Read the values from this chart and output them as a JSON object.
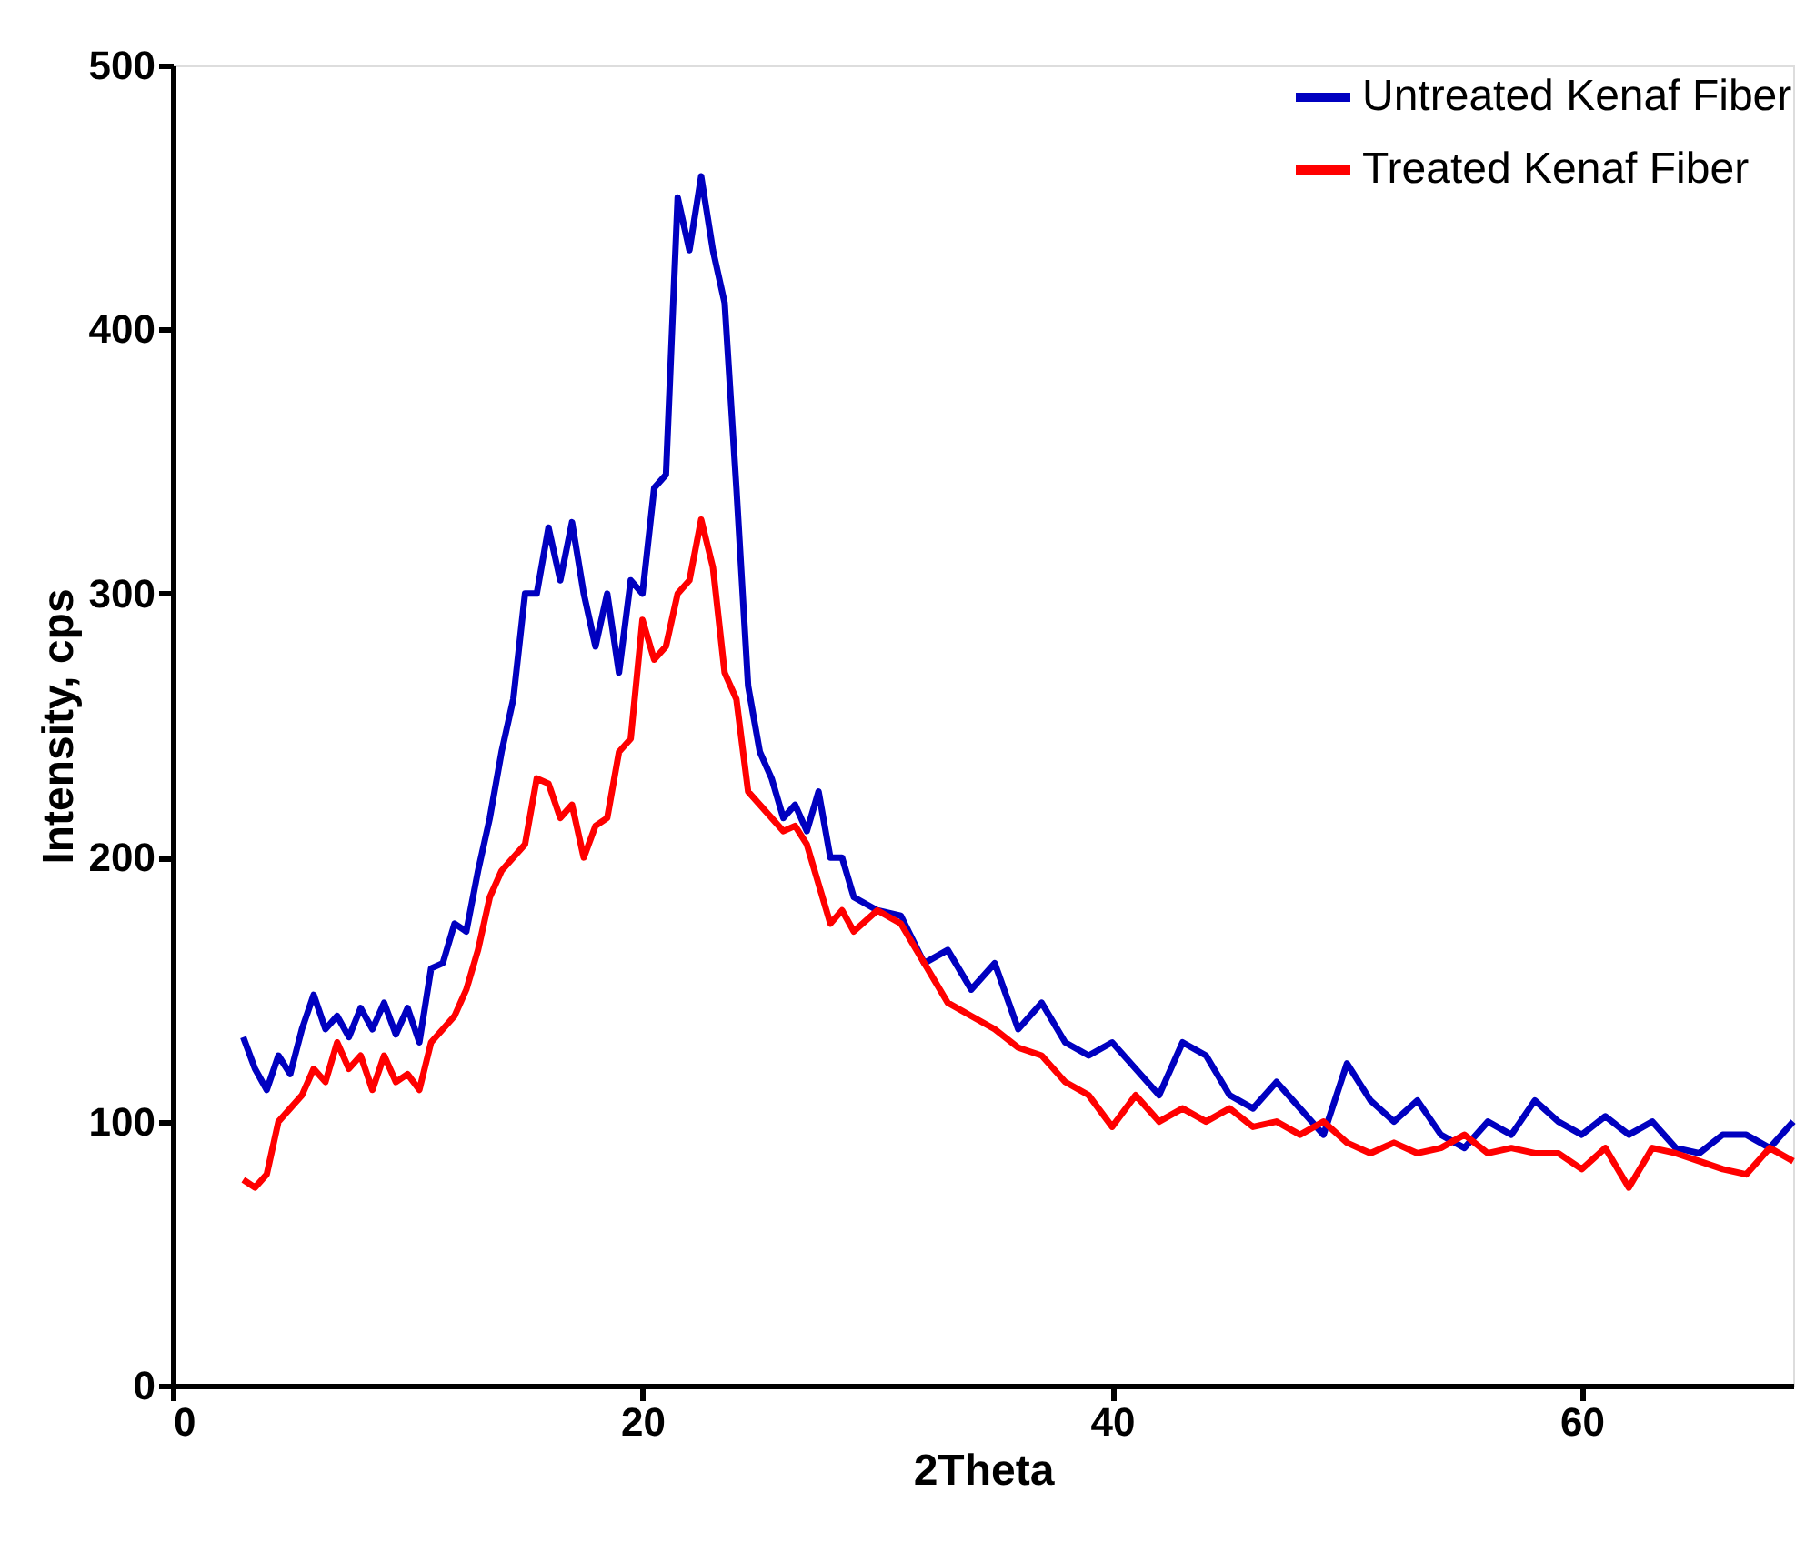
{
  "chart_data": {
    "type": "line",
    "xlabel": "2Theta",
    "ylabel": "Intensity, cps",
    "xlim": [
      0,
      69
    ],
    "xticks": [
      0,
      20,
      40,
      60
    ],
    "ylim": [
      0,
      500
    ],
    "yticks": [
      0,
      100,
      200,
      300,
      400,
      500
    ],
    "grid": false,
    "legend": "top right",
    "marker": "none",
    "line_style": "solid",
    "x": [
      3,
      3.5,
      4,
      4.5,
      5,
      5.5,
      6,
      6.5,
      7,
      7.5,
      8,
      8.5,
      9,
      9.5,
      10,
      10.5,
      11,
      11.5,
      12,
      12.5,
      13,
      13.5,
      14,
      14.5,
      15,
      15.5,
      16,
      16.5,
      17,
      17.5,
      18,
      18.5,
      19,
      19.5,
      20,
      20.5,
      21,
      21.5,
      22,
      22.5,
      23,
      23.5,
      24,
      24.5,
      25,
      25.5,
      26,
      26.5,
      27,
      27.5,
      28,
      28.5,
      29,
      30,
      31,
      32,
      33,
      34,
      35,
      36,
      37,
      38,
      39,
      40,
      41,
      42,
      43,
      44,
      45,
      46,
      47,
      48,
      49,
      50,
      51,
      52,
      53,
      54,
      55,
      56,
      57,
      58,
      59,
      60,
      61,
      62,
      63,
      64,
      65,
      66,
      67,
      68,
      69
    ],
    "series": [
      {
        "name": "Untreated Kenaf Fiber",
        "color": "#0000c0",
        "values": [
          132,
          120,
          112,
          125,
          118,
          135,
          148,
          135,
          140,
          132,
          143,
          135,
          145,
          133,
          143,
          130,
          158,
          160,
          175,
          172,
          195,
          215,
          240,
          260,
          300,
          300,
          325,
          305,
          327,
          300,
          280,
          300,
          270,
          305,
          300,
          340,
          345,
          450,
          430,
          458,
          430,
          410,
          340,
          265,
          240,
          230,
          215,
          220,
          210,
          225,
          200,
          200,
          185,
          180,
          178,
          160,
          165,
          150,
          160,
          135,
          145,
          130,
          125,
          130,
          120,
          110,
          130,
          125,
          110,
          105,
          115,
          105,
          95,
          122,
          108,
          100,
          108,
          95,
          90,
          100,
          95,
          108,
          100,
          95,
          102,
          95,
          100,
          90,
          88,
          95,
          95,
          90,
          100
        ]
      },
      {
        "name": "Treated Kenaf Fiber",
        "color": "#ff0000",
        "values": [
          78,
          75,
          80,
          100,
          105,
          110,
          120,
          115,
          130,
          120,
          125,
          112,
          125,
          115,
          118,
          112,
          130,
          135,
          140,
          150,
          165,
          185,
          195,
          200,
          205,
          230,
          228,
          215,
          220,
          200,
          212,
          215,
          240,
          245,
          290,
          275,
          280,
          300,
          305,
          328,
          310,
          270,
          260,
          225,
          220,
          215,
          210,
          212,
          205,
          190,
          175,
          180,
          172,
          180,
          175,
          160,
          145,
          140,
          135,
          128,
          125,
          115,
          110,
          98,
          110,
          100,
          105,
          100,
          105,
          98,
          100,
          95,
          100,
          92,
          88,
          92,
          88,
          90,
          95,
          88,
          90,
          88,
          88,
          82,
          90,
          75,
          90,
          88,
          85,
          82,
          80,
          90,
          85
        ]
      }
    ]
  }
}
